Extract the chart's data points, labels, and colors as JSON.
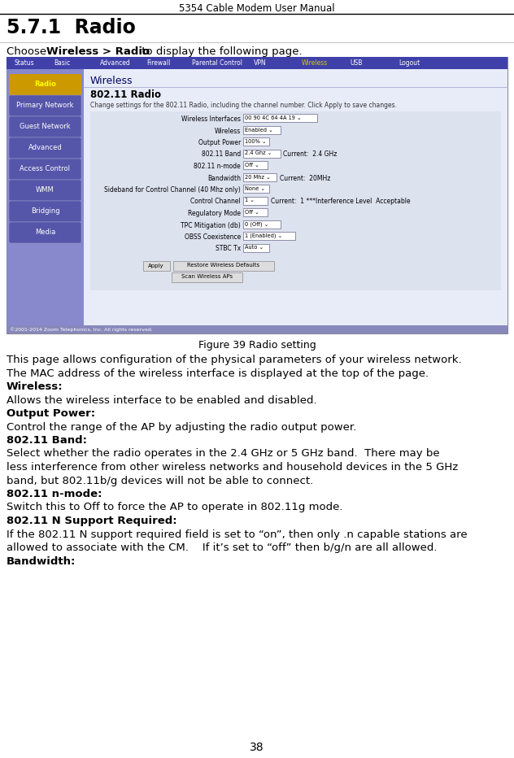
{
  "title": "5354 Cable Modem User Manual",
  "heading": "5.7.1  Radio",
  "figure_caption": "Figure 39 Radio setting",
  "nav_items": [
    "Status",
    "Basic",
    "Advanced",
    "Firewall",
    "Parental Control",
    "VPN",
    "Wireless",
    "USB",
    "Logout"
  ],
  "nav_highlight": "Wireless",
  "nav_highlight_color": "#cccc00",
  "nav_bg": "#4040aa",
  "nav_text_color": "#ffffff",
  "sidebar_items": [
    "Radio",
    "Primary Network",
    "Guest Network",
    "Advanced",
    "Access Control",
    "WMM",
    "Bridging",
    "Media"
  ],
  "sidebar_highlight": "Radio",
  "sidebar_bg": "#7777cc",
  "sidebar_highlight_text": "#ffff00",
  "sidebar_highlight_bg": "#cc9900",
  "sidebar_btn_bg": "#5555aa",
  "content_title": "Wireless",
  "content_subtitle": "802.11 Radio",
  "content_desc": "Change settings for the 802.11 Radio, including the channel number. Click Apply to save changes.",
  "form_fields": [
    {
      "label": "Wireless Interfaces",
      "dropdown": "00 90 4C 64 4A 19",
      "current": ""
    },
    {
      "label": "Wireless",
      "dropdown": "Enabled",
      "current": ""
    },
    {
      "label": "Output Power",
      "dropdown": "100%",
      "current": ""
    },
    {
      "label": "802.11 Band",
      "dropdown": "2.4 Ghz",
      "current": "Current:  2.4 GHz"
    },
    {
      "label": "802.11 n-mode",
      "dropdown": "Off",
      "current": ""
    },
    {
      "label": "Bandwidth",
      "dropdown": "20 Mhz",
      "current": "Current:  20MHz"
    },
    {
      "label": "Sideband for Control Channel (40 Mhz only)",
      "dropdown": "None",
      "current": ""
    },
    {
      "label": "Control Channel",
      "dropdown": "1",
      "current": "Current:  1 ***Interference Level  Acceptable"
    },
    {
      "label": "Regulatory Mode",
      "dropdown": "Off",
      "current": ""
    },
    {
      "label": "TPC Mitigation (db)",
      "dropdown": "0 (Off)",
      "current": ""
    },
    {
      "label": "OBSS Coexistence",
      "dropdown": "1 (Enabled)",
      "current": ""
    },
    {
      "label": "STBC Tx",
      "dropdown": "Auto",
      "current": ""
    }
  ],
  "buttons_row1": [
    "Apply",
    "Restore Wireless Defaults"
  ],
  "buttons_row2": [
    "Scan Wireless APs"
  ],
  "footer_text": "©2001-2014 Zoom Telephonics, Inc. All rights reserved.",
  "page_number": "38",
  "body_lines": [
    {
      "text": "This page allows configuration of the physical parameters of your wireless network.",
      "bold": false
    },
    {
      "text": "The MAC address of the wireless interface is displayed at the top of the page.",
      "bold": false
    },
    {
      "text": "Wireless:",
      "bold": true
    },
    {
      "text": "Allows the wireless interface to be enabled and disabled.",
      "bold": false
    },
    {
      "text": "Output Power:",
      "bold": true
    },
    {
      "text": "Control the range of the AP by adjusting the radio output power.",
      "bold": false
    },
    {
      "text": "802.11 Band:",
      "bold": true
    },
    {
      "text": "Select whether the radio operates in the 2.4 GHz or 5 GHz band.  There may be",
      "bold": false
    },
    {
      "text": "less interference from other wireless networks and household devices in the 5 GHz",
      "bold": false
    },
    {
      "text": "band, but 802.11b/g devices will not be able to connect.",
      "bold": false
    },
    {
      "text": "802.11 n-mode:",
      "bold": true
    },
    {
      "text": "Switch this to Off to force the AP to operate in 802.11g mode.",
      "bold": false
    },
    {
      "text": "802.11 N Support Required:",
      "bold": true
    },
    {
      "text": "If the 802.11 N support required field is set to “on”, then only .n capable stations are",
      "bold": false
    },
    {
      "text": "allowed to associate with the CM.    If it’s set to “off” then b/g/n are all allowed.",
      "bold": false
    },
    {
      "text": "Bandwidth:",
      "bold": true
    }
  ],
  "bg_color": "#ffffff",
  "screenshot_outer_bg": "#c8ccdd",
  "screenshot_content_bg": "#dde2ef",
  "screenshot_main_bg": "#e8ecf5",
  "screenshot_border_color": "#8888bb"
}
